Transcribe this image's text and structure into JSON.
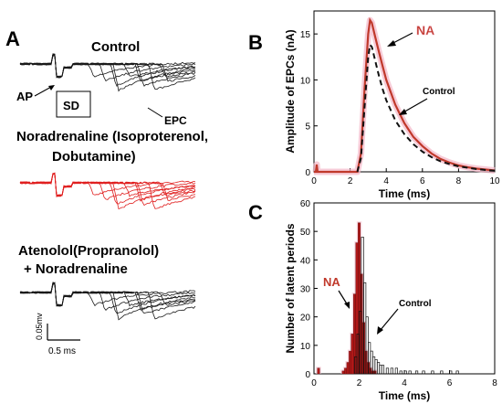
{
  "panels": {
    "a": "A",
    "b": "B",
    "c": "C"
  },
  "panel_a": {
    "control_title": "Control",
    "nora_title_line1": "Noradrenaline (Isoproterenol,",
    "nora_title_line2": "Dobutamine)",
    "aten_title_line1": "Atenolol(Propranolol)",
    "aten_title_line2": "+ Noradrenaline",
    "ap_label": "AP",
    "sd_label": "SD",
    "epc_label": "EPC",
    "scale_v": "0.05mv",
    "scale_t": "0.5 ms",
    "colors": {
      "control": "#1a1a1a",
      "nora": "#e02020"
    }
  },
  "chart_data": [
    {
      "type": "line",
      "panel": "B",
      "xlabel": "Time (ms)",
      "ylabel": "Amplitude of EPCs (nA)",
      "xlim": [
        0,
        10
      ],
      "ylim": [
        0,
        17.5
      ],
      "xticks": [
        0,
        2,
        4,
        6,
        8,
        10
      ],
      "yticks": [
        0,
        5,
        10,
        15
      ],
      "series": [
        {
          "name": "NA",
          "color": "#c0392b",
          "style": "solid",
          "x": [
            0,
            0.1,
            0.15,
            0.2,
            0.3,
            2.4,
            2.6,
            2.8,
            3.0,
            3.1,
            3.2,
            3.4,
            3.6,
            3.8,
            4.0,
            4.5,
            5,
            5.5,
            6,
            6.5,
            7,
            7.5,
            8,
            8.5,
            9,
            9.5,
            10
          ],
          "y": [
            0,
            0,
            0.8,
            0,
            0,
            0,
            2,
            9,
            15,
            16.5,
            16.2,
            14.6,
            13,
            11.5,
            10,
            7.3,
            5.3,
            3.8,
            2.8,
            2.0,
            1.4,
            1.0,
            0.7,
            0.5,
            0.35,
            0.25,
            0.15
          ]
        },
        {
          "name": "Control",
          "color": "#111111",
          "style": "dashed",
          "x": [
            2.4,
            2.6,
            2.8,
            3.0,
            3.1,
            3.2,
            3.4,
            3.6,
            3.8,
            4.0,
            4.5,
            5,
            5.5,
            6,
            6.5,
            7,
            7.5,
            8,
            8.5,
            9,
            9.5,
            10
          ],
          "y": [
            0,
            1.5,
            7,
            12.5,
            13.8,
            13.6,
            12,
            10.4,
            9,
            7.8,
            5.6,
            4.1,
            3.0,
            2.2,
            1.6,
            1.15,
            0.85,
            0.6,
            0.45,
            0.3,
            0.2,
            0.12
          ]
        }
      ]
    },
    {
      "type": "bar",
      "panel": "C",
      "xlabel": "Time (ms)",
      "ylabel": "Number of latent periods",
      "xlim": [
        0,
        8
      ],
      "ylim": [
        0,
        60
      ],
      "xticks": [
        0,
        2,
        4,
        6,
        8
      ],
      "yticks": [
        0,
        10,
        20,
        30,
        40,
        50,
        60
      ],
      "bin_width": 0.1,
      "series": [
        {
          "name": "NA",
          "color": "#b01818",
          "x": [
            0.2,
            1.3,
            1.4,
            1.5,
            1.6,
            1.7,
            1.8,
            1.9,
            2.0,
            2.1,
            2.2,
            2.3,
            2.4,
            2.5,
            2.6,
            2.7
          ],
          "values": [
            2,
            1,
            2,
            4,
            8,
            14,
            28,
            46,
            53,
            35,
            18,
            8,
            4,
            2,
            1,
            1
          ]
        },
        {
          "name": "Control",
          "color": "#ffffff",
          "x": [
            1.8,
            1.9,
            2.0,
            2.1,
            2.2,
            2.3,
            2.4,
            2.5,
            2.6,
            2.7,
            2.8,
            2.9,
            3.0,
            3.2,
            3.4,
            3.6,
            3.8,
            4.0,
            4.2,
            4.5,
            4.8,
            5.2,
            5.6,
            6.0,
            6.3
          ],
          "values": [
            6,
            14,
            22,
            48,
            32,
            20,
            11,
            8,
            6,
            5,
            4,
            3,
            3,
            2,
            2,
            2,
            1,
            1,
            1,
            1,
            1,
            1,
            1,
            1,
            1
          ]
        }
      ],
      "annotations": [
        "NA",
        "Control"
      ]
    }
  ]
}
